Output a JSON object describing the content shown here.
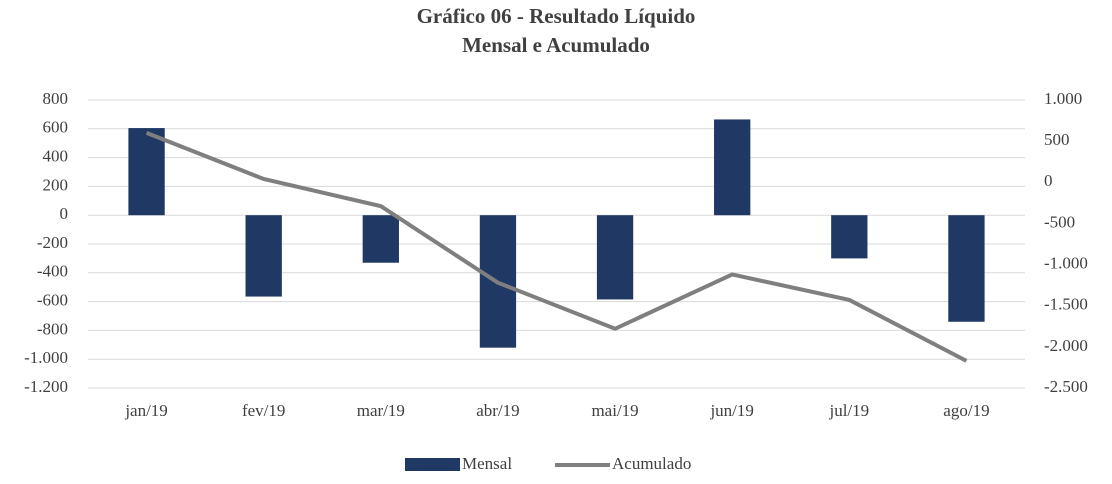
{
  "chart_data": {
    "type": "bar_line",
    "title": "Gráfico 06 - Resultado Líquido",
    "subtitle": "Mensal e Acumulado",
    "categories": [
      "jan/19",
      "fev/19",
      "mar/19",
      "abr/19",
      "mai/19",
      "jun/19",
      "jul/19",
      "ago/19"
    ],
    "series": [
      {
        "name": "Mensal",
        "type": "bar",
        "color": "#1f3864",
        "values": [
          605,
          -565,
          -330,
          -920,
          -585,
          665,
          -300,
          -740
        ]
      },
      {
        "name": "Acumulado",
        "type": "line",
        "color": "#7f7f7f",
        "axis": "y2",
        "values": [
          600,
          40,
          -290,
          -1220,
          -1780,
          -1120,
          -1430,
          -2170
        ]
      }
    ],
    "ylim": [
      -1200,
      800
    ],
    "yticks": [
      800,
      600,
      400,
      200,
      0,
      -200,
      -400,
      -600,
      -800,
      {
        "value": -1000,
        "label": "-1.000"
      },
      {
        "value": -1200,
        "label": "-1.200"
      }
    ],
    "y2lim": [
      -2500,
      1000
    ],
    "y2ticks": [
      {
        "value": 1000,
        "label": "1.000"
      },
      500,
      0,
      -500,
      {
        "value": -1000,
        "label": "-1.000"
      },
      {
        "value": -1500,
        "label": "-1.500"
      },
      {
        "value": -2000,
        "label": "-2.000"
      },
      {
        "value": -2500,
        "label": "-2.500"
      }
    ],
    "grid": true,
    "legend": "bottom"
  }
}
